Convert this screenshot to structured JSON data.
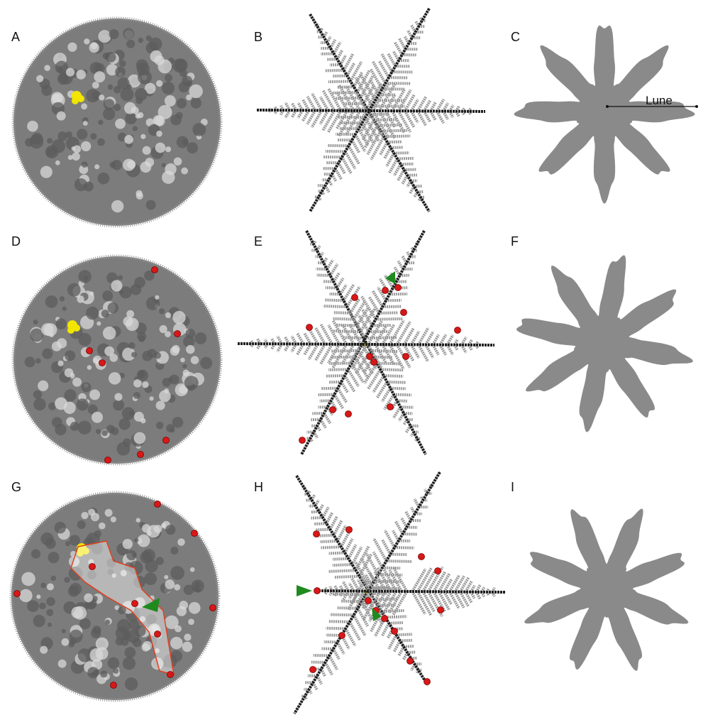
{
  "panels": [
    {
      "label": "A"
    },
    {
      "label": "B"
    },
    {
      "label": "C"
    },
    {
      "label": "D"
    },
    {
      "label": "E"
    },
    {
      "label": "F"
    },
    {
      "label": "G"
    },
    {
      "label": "H"
    },
    {
      "label": "I"
    }
  ],
  "annotation": "Lune"
}
